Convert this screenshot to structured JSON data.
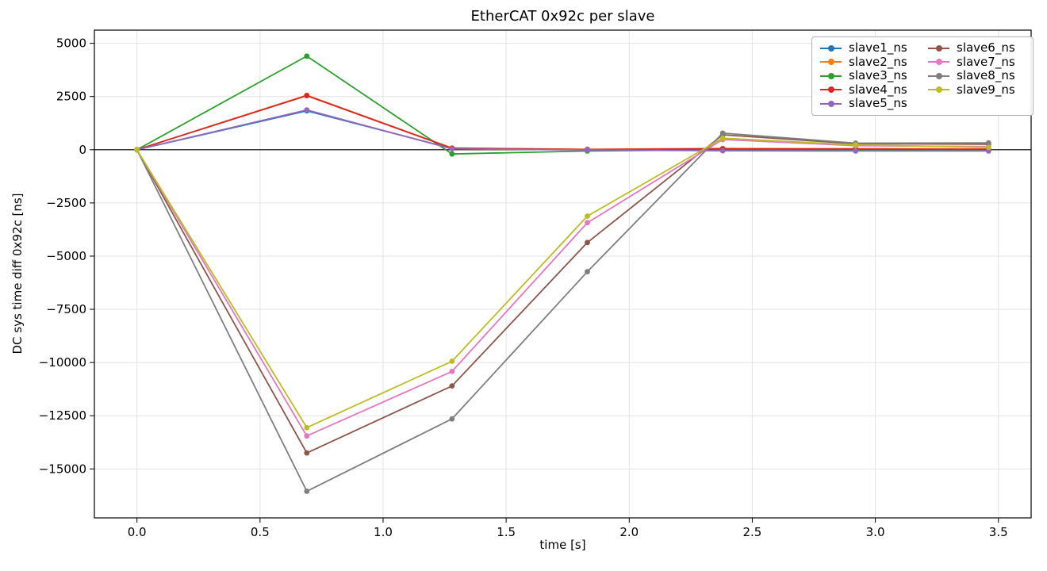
{
  "figure": {
    "background": "#ffffff"
  },
  "chart_data": {
    "type": "line",
    "title": "EtherCAT 0x92c per slave",
    "xlabel": "time [s]",
    "ylabel": "DC sys time diff 0x92c [ns]",
    "x": [
      0.0,
      0.69,
      1.28,
      1.83,
      2.38,
      2.92,
      3.46
    ],
    "series": [
      {
        "name": "slave1_ns",
        "color": "#1f77b4",
        "values": [
          0,
          1830,
          60,
          10,
          30,
          20,
          10
        ]
      },
      {
        "name": "slave2_ns",
        "color": "#ff7f0e",
        "values": [
          0,
          2560,
          80,
          20,
          60,
          50,
          40
        ]
      },
      {
        "name": "slave3_ns",
        "color": "#2ca02c",
        "values": [
          0,
          4400,
          -200,
          -60,
          0,
          -20,
          -10
        ]
      },
      {
        "name": "slave4_ns",
        "color": "#d62728",
        "values": [
          0,
          2540,
          70,
          10,
          40,
          30,
          20
        ]
      },
      {
        "name": "slave5_ns",
        "color": "#9467bd",
        "values": [
          0,
          1870,
          40,
          -10,
          -50,
          -60,
          -60
        ]
      },
      {
        "name": "slave6_ns",
        "color": "#8c564b",
        "values": [
          0,
          -14250,
          -11100,
          -4360,
          700,
          280,
          260
        ]
      },
      {
        "name": "slave7_ns",
        "color": "#e377c2",
        "values": [
          0,
          -13450,
          -10420,
          -3430,
          480,
          190,
          150
        ]
      },
      {
        "name": "slave8_ns",
        "color": "#7f7f7f",
        "values": [
          0,
          -16050,
          -12650,
          -5730,
          780,
          310,
          320
        ]
      },
      {
        "name": "slave9_ns",
        "color": "#bcbd22",
        "values": [
          0,
          -13060,
          -9940,
          -3120,
          540,
          230,
          110
        ]
      }
    ],
    "xlim": [
      -0.173,
      3.633
    ],
    "ylim": [
      -17300,
      5620
    ],
    "xticks": [
      0.0,
      0.5,
      1.0,
      1.5,
      2.0,
      2.5,
      3.0,
      3.5
    ],
    "xtick_labels": [
      "0.0",
      "0.5",
      "1.0",
      "1.5",
      "2.0",
      "2.5",
      "3.0",
      "3.5"
    ],
    "yticks": [
      5000,
      2500,
      0,
      -2500,
      -5000,
      -7500,
      -10000,
      -12500,
      -15000
    ],
    "ytick_labels": [
      "5000",
      "2500",
      "0",
      "−2500",
      "−5000",
      "−7500",
      "−10000",
      "−12500",
      "−15000"
    ],
    "grid": true,
    "grid_color": "#e3e3e3",
    "zero_line_color": "#000000",
    "spine_color": "#000000",
    "legend_position": "upper-right",
    "legend_columns": 2
  }
}
